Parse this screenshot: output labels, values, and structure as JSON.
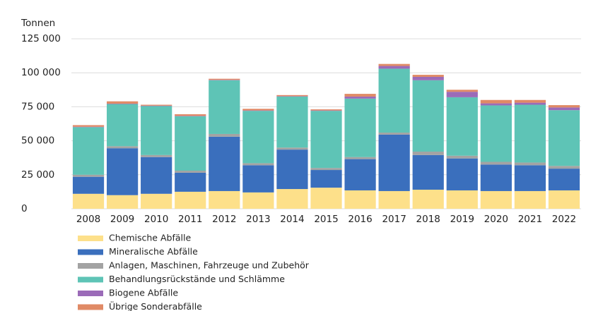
{
  "chart_data": {
    "type": "stacked_bar",
    "y_label": "Tonnen",
    "categories": [
      "2008",
      "2009",
      "2010",
      "2011",
      "2012",
      "2013",
      "2014",
      "2015",
      "2016",
      "2017",
      "2018",
      "2019",
      "2020",
      "2021",
      "2022"
    ],
    "series": [
      {
        "name": "Chemische Abfälle",
        "color": "#fde08a",
        "values": [
          11000,
          10000,
          11000,
          12500,
          13000,
          12000,
          14500,
          15500,
          13500,
          13000,
          14000,
          13500,
          13000,
          13000,
          13500
        ]
      },
      {
        "name": "Mineralische Abfälle",
        "color": "#3a6fbd",
        "values": [
          12500,
          34500,
          27000,
          14000,
          40000,
          20000,
          29000,
          13000,
          23000,
          41500,
          25500,
          23500,
          19500,
          19000,
          16000
        ]
      },
      {
        "name": "Anlagen, Maschinen, Fahrzeuge und Zubehör",
        "color": "#a3a3a3",
        "values": [
          1500,
          1500,
          1500,
          1500,
          2000,
          1500,
          1500,
          1500,
          1500,
          1500,
          2500,
          2000,
          2000,
          2000,
          2000
        ]
      },
      {
        "name": "Behandlungsrückstände und Schlämme",
        "color": "#5ec4b6",
        "values": [
          35000,
          31000,
          36000,
          40000,
          39500,
          38500,
          37500,
          42000,
          43000,
          47000,
          52500,
          43000,
          41500,
          42500,
          41000
        ]
      },
      {
        "name": "Biogene Abfälle",
        "color": "#9b6bb8",
        "values": [
          300,
          300,
          300,
          300,
          300,
          300,
          300,
          300,
          1500,
          2000,
          2500,
          4000,
          1500,
          1500,
          2000
        ]
      },
      {
        "name": "Übrige Sonderabfälle",
        "color": "#e08a66",
        "values": [
          1200,
          1700,
          700,
          1200,
          800,
          1200,
          800,
          800,
          2000,
          1500,
          1500,
          1500,
          2500,
          2000,
          1700
        ]
      }
    ],
    "ylim": [
      0,
      125000
    ],
    "yticks": [
      0,
      {
        "value": 25000,
        "label": "25 000"
      },
      {
        "value": 50000,
        "label": "50 000"
      },
      {
        "value": 75000,
        "label": "75 000"
      },
      {
        "value": 100000,
        "label": "100 000"
      },
      {
        "value": 125000,
        "label": "125 000"
      }
    ],
    "grid": true
  }
}
